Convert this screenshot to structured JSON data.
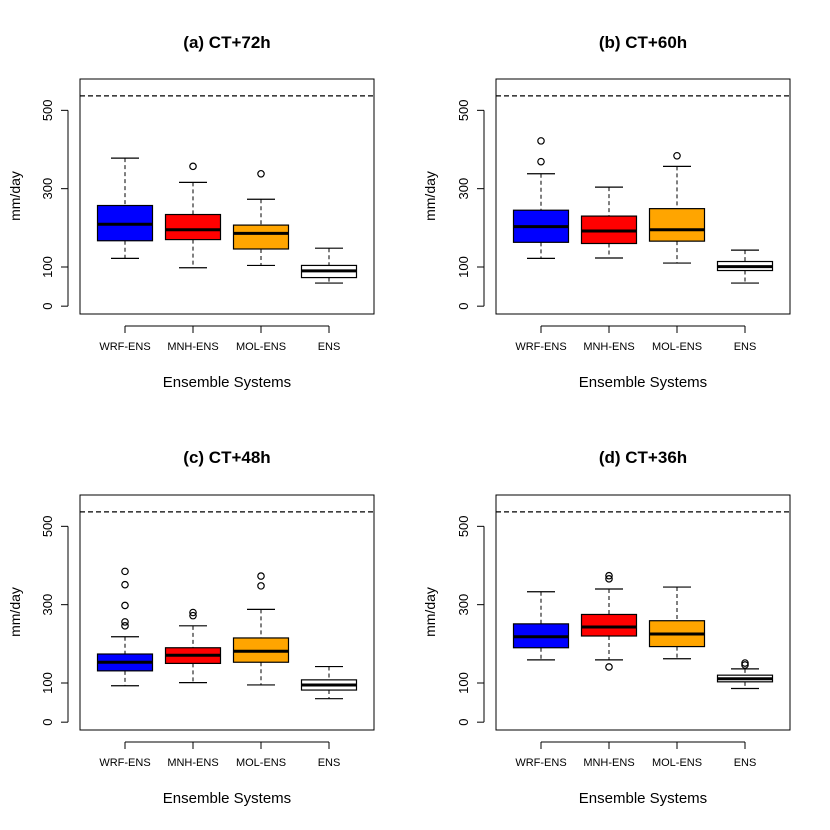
{
  "chart_data": [
    {
      "type": "boxplot",
      "title": "(a) CT+72h",
      "xlabel": "Ensemble Systems",
      "ylabel": "mm/day",
      "ylim": [
        -20,
        580
      ],
      "yticks": [
        0,
        100,
        300,
        500
      ],
      "reference_line": 537,
      "categories": [
        "WRF-ENS",
        "MNH-ENS",
        "MOL-ENS",
        "ENS"
      ],
      "boxes": [
        {
          "name": "WRF-ENS",
          "color": "#0000ff",
          "whisker_low": 122,
          "q1": 167,
          "median": 209,
          "q3": 257,
          "whisker_high": 378,
          "outliers": []
        },
        {
          "name": "MNH-ENS",
          "color": "#ff0000",
          "whisker_low": 98,
          "q1": 170,
          "median": 195,
          "q3": 234,
          "whisker_high": 316,
          "outliers": [
            357
          ]
        },
        {
          "name": "MOL-ENS",
          "color": "#ffa500",
          "whisker_low": 104,
          "q1": 146,
          "median": 186,
          "q3": 207,
          "whisker_high": 273,
          "outliers": [
            338
          ]
        },
        {
          "name": "ENS",
          "color": "#ffffff",
          "whisker_low": 59,
          "q1": 73,
          "median": 90,
          "q3": 104,
          "whisker_high": 148,
          "outliers": []
        }
      ]
    },
    {
      "type": "boxplot",
      "title": "(b) CT+60h",
      "xlabel": "Ensemble Systems",
      "ylabel": "mm/day",
      "ylim": [
        -20,
        580
      ],
      "yticks": [
        0,
        100,
        300,
        500
      ],
      "reference_line": 537,
      "categories": [
        "WRF-ENS",
        "MNH-ENS",
        "MOL-ENS",
        "ENS"
      ],
      "boxes": [
        {
          "name": "WRF-ENS",
          "color": "#0000ff",
          "whisker_low": 122,
          "q1": 163,
          "median": 203,
          "q3": 245,
          "whisker_high": 338,
          "outliers": [
            369,
            422
          ]
        },
        {
          "name": "MNH-ENS",
          "color": "#ff0000",
          "whisker_low": 123,
          "q1": 160,
          "median": 192,
          "q3": 230,
          "whisker_high": 304,
          "outliers": []
        },
        {
          "name": "MOL-ENS",
          "color": "#ffa500",
          "whisker_low": 110,
          "q1": 166,
          "median": 195,
          "q3": 249,
          "whisker_high": 357,
          "outliers": [
            384
          ]
        },
        {
          "name": "ENS",
          "color": "#ffffff",
          "whisker_low": 59,
          "q1": 91,
          "median": 101,
          "q3": 114,
          "whisker_high": 143,
          "outliers": []
        }
      ]
    },
    {
      "type": "boxplot",
      "title": "(c) CT+48h",
      "xlabel": "Ensemble Systems",
      "ylabel": "mm/day",
      "ylim": [
        -20,
        580
      ],
      "yticks": [
        0,
        100,
        300,
        500
      ],
      "reference_line": 537,
      "categories": [
        "WRF-ENS",
        "MNH-ENS",
        "MOL-ENS",
        "ENS"
      ],
      "boxes": [
        {
          "name": "WRF-ENS",
          "color": "#0000ff",
          "whisker_low": 93,
          "q1": 131,
          "median": 153,
          "q3": 174,
          "whisker_high": 218,
          "outliers": [
            246,
            256,
            298,
            351,
            385
          ]
        },
        {
          "name": "MNH-ENS",
          "color": "#ff0000",
          "whisker_low": 101,
          "q1": 150,
          "median": 171,
          "q3": 190,
          "whisker_high": 246,
          "outliers": [
            272,
            280
          ]
        },
        {
          "name": "MOL-ENS",
          "color": "#ffa500",
          "whisker_low": 95,
          "q1": 153,
          "median": 181,
          "q3": 215,
          "whisker_high": 288,
          "outliers": [
            348,
            373
          ]
        },
        {
          "name": "ENS",
          "color": "#ffffff",
          "whisker_low": 60,
          "q1": 82,
          "median": 95,
          "q3": 108,
          "whisker_high": 142,
          "outliers": []
        }
      ]
    },
    {
      "type": "boxplot",
      "title": "(d) CT+36h",
      "xlabel": "Ensemble Systems",
      "ylabel": "mm/day",
      "ylim": [
        -20,
        580
      ],
      "yticks": [
        0,
        100,
        300,
        500
      ],
      "reference_line": 537,
      "categories": [
        "WRF-ENS",
        "MNH-ENS",
        "MOL-ENS",
        "ENS"
      ],
      "boxes": [
        {
          "name": "WRF-ENS",
          "color": "#0000ff",
          "whisker_low": 159,
          "q1": 190,
          "median": 218,
          "q3": 251,
          "whisker_high": 333,
          "outliers": []
        },
        {
          "name": "MNH-ENS",
          "color": "#ff0000",
          "whisker_low": 159,
          "q1": 220,
          "median": 243,
          "q3": 275,
          "whisker_high": 340,
          "outliers": [
            141,
            366,
            374
          ]
        },
        {
          "name": "MOL-ENS",
          "color": "#ffa500",
          "whisker_low": 162,
          "q1": 193,
          "median": 225,
          "q3": 259,
          "whisker_high": 345,
          "outliers": []
        },
        {
          "name": "ENS",
          "color": "#ffffff",
          "whisker_low": 86,
          "q1": 103,
          "median": 111,
          "q3": 120,
          "whisker_high": 136,
          "outliers": [
            146,
            151
          ]
        }
      ]
    }
  ]
}
